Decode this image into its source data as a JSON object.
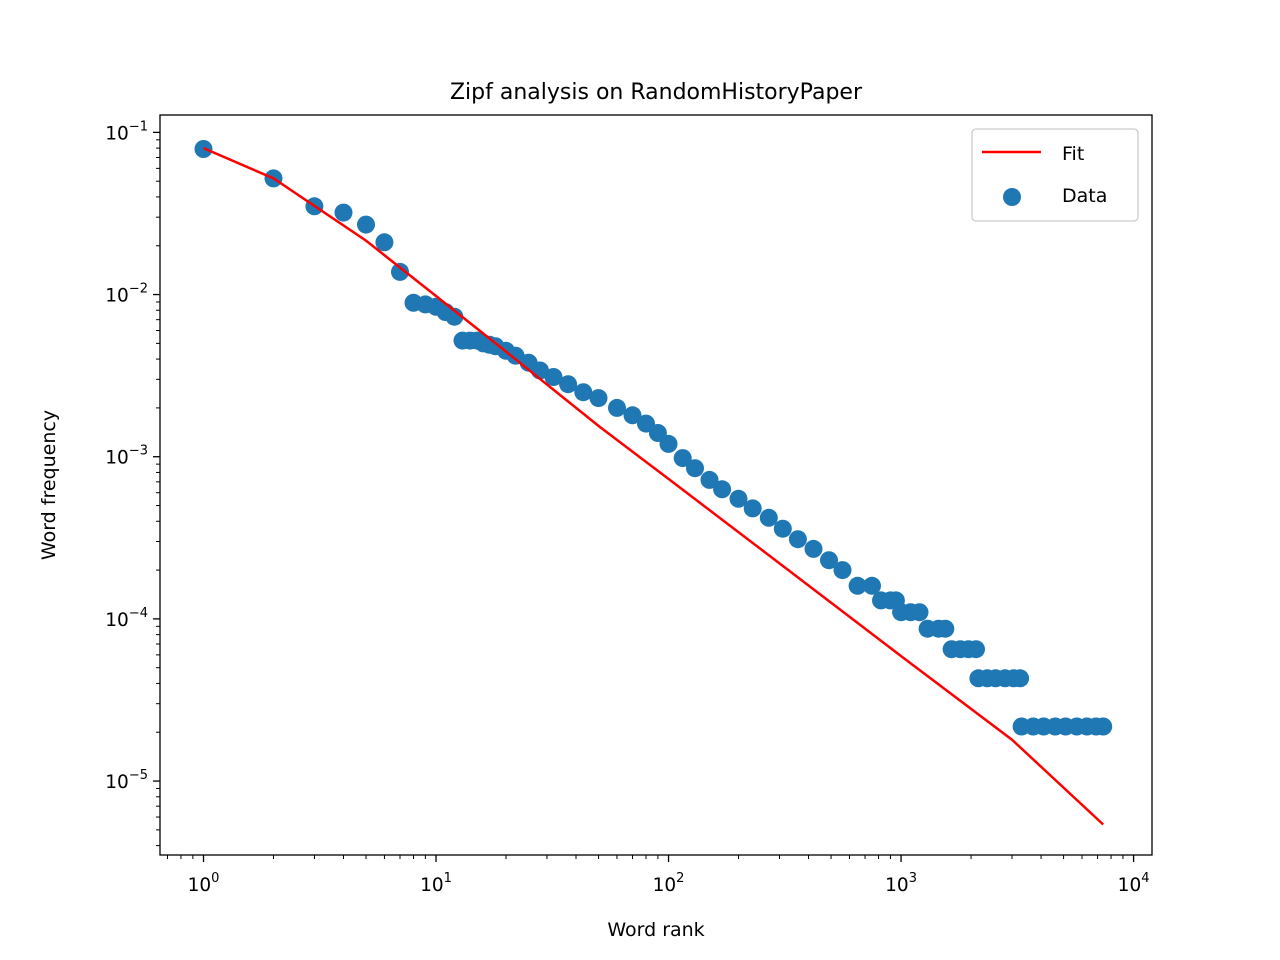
{
  "chart_data": {
    "type": "scatter",
    "title": "Zipf analysis on RandomHistoryPaper",
    "xlabel": "Word rank",
    "ylabel": "Word frequency",
    "xscale": "log",
    "yscale": "log",
    "xlim": [
      0.65,
      12000
    ],
    "ylim": [
      3.5e-06,
      0.128
    ],
    "grid": false,
    "legend_position": "upper right",
    "x_ticks": [
      {
        "base": "10",
        "exp": "0"
      },
      {
        "base": "10",
        "exp": "1"
      },
      {
        "base": "10",
        "exp": "2"
      },
      {
        "base": "10",
        "exp": "3"
      },
      {
        "base": "10",
        "exp": "4"
      }
    ],
    "y_ticks": [
      {
        "base": "10",
        "exp": "−1"
      },
      {
        "base": "10",
        "exp": "−2"
      },
      {
        "base": "10",
        "exp": "−3"
      },
      {
        "base": "10",
        "exp": "−4"
      },
      {
        "base": "10",
        "exp": "−5"
      }
    ],
    "series": [
      {
        "name": "Fit",
        "kind": "line",
        "color": "#ff0000",
        "points": [
          [
            1,
            0.08
          ],
          [
            2,
            0.052
          ],
          [
            5,
            0.0215
          ],
          [
            10,
            0.0098
          ],
          [
            20,
            0.00445
          ],
          [
            50,
            0.00155
          ],
          [
            100,
            0.00073
          ],
          [
            300,
            0.00022
          ],
          [
            1000,
            5.9e-05
          ],
          [
            3000,
            1.8e-05
          ],
          [
            7400,
            5.4e-06
          ]
        ]
      },
      {
        "name": "Data",
        "kind": "scatter",
        "color": "#1f77b4",
        "points": [
          [
            1,
            0.079
          ],
          [
            2,
            0.052
          ],
          [
            3,
            0.035
          ],
          [
            4,
            0.032
          ],
          [
            5,
            0.027
          ],
          [
            6,
            0.021
          ],
          [
            7,
            0.0138
          ],
          [
            8,
            0.0089
          ],
          [
            9,
            0.0087
          ],
          [
            10,
            0.0084
          ],
          [
            11,
            0.0078
          ],
          [
            12,
            0.0073
          ],
          [
            13,
            0.0052
          ],
          [
            14,
            0.0052
          ],
          [
            15,
            0.0052
          ],
          [
            16,
            0.005
          ],
          [
            17,
            0.0049
          ],
          [
            18,
            0.0048
          ],
          [
            20,
            0.0045
          ],
          [
            22,
            0.0042
          ],
          [
            25,
            0.0038
          ],
          [
            28,
            0.0034
          ],
          [
            32,
            0.0031
          ],
          [
            37,
            0.0028
          ],
          [
            43,
            0.0025
          ],
          [
            50,
            0.0023
          ],
          [
            60,
            0.002
          ],
          [
            70,
            0.0018
          ],
          [
            80,
            0.0016
          ],
          [
            90,
            0.0014
          ],
          [
            100,
            0.0012
          ],
          [
            115,
            0.00098
          ],
          [
            130,
            0.00085
          ],
          [
            150,
            0.00072
          ],
          [
            170,
            0.00063
          ],
          [
            200,
            0.00055
          ],
          [
            230,
            0.00048
          ],
          [
            270,
            0.00042
          ],
          [
            310,
            0.00036
          ],
          [
            360,
            0.00031
          ],
          [
            420,
            0.00027
          ],
          [
            490,
            0.00023
          ],
          [
            560,
            0.0002
          ],
          [
            650,
            0.00016
          ],
          [
            750,
            0.00016
          ],
          [
            820,
            0.00013
          ],
          [
            900,
            0.00013
          ],
          [
            950,
            0.00013
          ],
          [
            1000,
            0.00011
          ],
          [
            1100,
            0.00011
          ],
          [
            1200,
            0.00011
          ],
          [
            1300,
            8.7e-05
          ],
          [
            1450,
            8.7e-05
          ],
          [
            1550,
            8.7e-05
          ],
          [
            1650,
            6.5e-05
          ],
          [
            1800,
            6.5e-05
          ],
          [
            1950,
            6.5e-05
          ],
          [
            2100,
            6.5e-05
          ],
          [
            2150,
            4.3e-05
          ],
          [
            2350,
            4.3e-05
          ],
          [
            2550,
            4.3e-05
          ],
          [
            2800,
            4.3e-05
          ],
          [
            3050,
            4.3e-05
          ],
          [
            3250,
            4.3e-05
          ],
          [
            3300,
            2.17e-05
          ],
          [
            3700,
            2.17e-05
          ],
          [
            4100,
            2.17e-05
          ],
          [
            4600,
            2.17e-05
          ],
          [
            5100,
            2.17e-05
          ],
          [
            5700,
            2.17e-05
          ],
          [
            6300,
            2.17e-05
          ],
          [
            6900,
            2.17e-05
          ],
          [
            7400,
            2.17e-05
          ]
        ]
      }
    ]
  }
}
